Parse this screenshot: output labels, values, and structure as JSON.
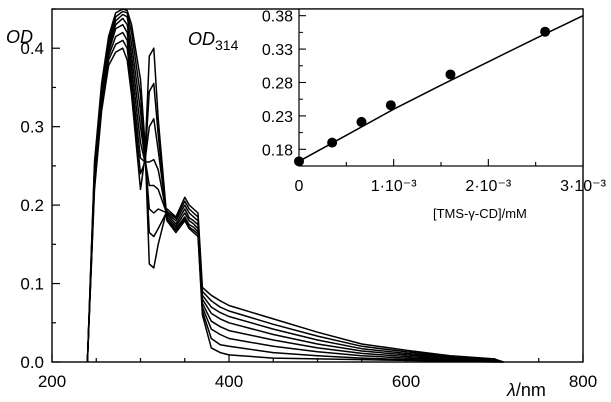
{
  "chart_data": [
    {
      "type": "line",
      "ylabel": "OD",
      "xlabel_var": "λ",
      "xlabel_unit": "/nm",
      "xlim": [
        200,
        800
      ],
      "ylim": [
        0,
        0.45
      ],
      "x_ticks": [
        "200",
        "400",
        "600",
        "800"
      ],
      "y_ticks": [
        "0.0",
        "0.1",
        "0.2",
        "0.3",
        "0.4"
      ],
      "grid": false,
      "series": [
        {
          "x": [
            240,
            248,
            256,
            264,
            272,
            280,
            285,
            290,
            300,
            305,
            310,
            315,
            320,
            330,
            340,
            350,
            355,
            360,
            365,
            370,
            380,
            390,
            400,
            450,
            500,
            550,
            600,
            650,
            700,
            710
          ],
          "y": [
            0,
            0.22,
            0.32,
            0.378,
            0.395,
            0.4,
            0.385,
            0.34,
            0.22,
            0.26,
            0.39,
            0.4,
            0.31,
            0.18,
            0.165,
            0.18,
            0.17,
            0.165,
            0.16,
            0.06,
            0.018,
            0.012,
            0.009,
            0.005,
            0.004,
            0.003,
            0.002,
            0.001,
            0,
            0
          ]
        },
        {
          "x": [
            240,
            248,
            256,
            264,
            272,
            280,
            285,
            290,
            300,
            305,
            310,
            315,
            320,
            330,
            340,
            350,
            355,
            360,
            365,
            370,
            380,
            390,
            400,
            450,
            500,
            550,
            600,
            650,
            700,
            710
          ],
          "y": [
            0,
            0.225,
            0.325,
            0.385,
            0.405,
            0.41,
            0.4,
            0.35,
            0.24,
            0.255,
            0.345,
            0.355,
            0.29,
            0.18,
            0.168,
            0.182,
            0.172,
            0.168,
            0.163,
            0.065,
            0.03,
            0.022,
            0.02,
            0.012,
            0.008,
            0.005,
            0.003,
            0.002,
            0.001,
            0
          ]
        },
        {
          "x": [
            240,
            248,
            256,
            264,
            272,
            280,
            285,
            290,
            300,
            305,
            310,
            315,
            320,
            330,
            340,
            350,
            355,
            360,
            365,
            370,
            380,
            390,
            400,
            450,
            500,
            550,
            600,
            650,
            700,
            710
          ],
          "y": [
            0,
            0.23,
            0.33,
            0.39,
            0.415,
            0.42,
            0.41,
            0.36,
            0.26,
            0.255,
            0.3,
            0.31,
            0.27,
            0.182,
            0.17,
            0.185,
            0.175,
            0.172,
            0.166,
            0.07,
            0.042,
            0.035,
            0.03,
            0.02,
            0.013,
            0.008,
            0.005,
            0.003,
            0.001,
            0
          ]
        },
        {
          "x": [
            240,
            248,
            256,
            264,
            272,
            280,
            285,
            290,
            300,
            305,
            310,
            315,
            320,
            330,
            340,
            350,
            355,
            360,
            365,
            370,
            380,
            390,
            400,
            450,
            500,
            550,
            600,
            650,
            700,
            710
          ],
          "y": [
            0,
            0.235,
            0.335,
            0.395,
            0.425,
            0.43,
            0.42,
            0.375,
            0.28,
            0.255,
            0.255,
            0.258,
            0.245,
            0.185,
            0.173,
            0.19,
            0.18,
            0.176,
            0.17,
            0.075,
            0.052,
            0.045,
            0.04,
            0.028,
            0.018,
            0.011,
            0.007,
            0.004,
            0.002,
            0
          ]
        },
        {
          "x": [
            240,
            248,
            256,
            264,
            272,
            280,
            285,
            290,
            300,
            305,
            310,
            315,
            320,
            330,
            340,
            350,
            355,
            360,
            365,
            370,
            380,
            390,
            400,
            450,
            500,
            550,
            600,
            650,
            700,
            710
          ],
          "y": [
            0,
            0.24,
            0.34,
            0.4,
            0.43,
            0.438,
            0.43,
            0.39,
            0.3,
            0.26,
            0.225,
            0.225,
            0.22,
            0.188,
            0.176,
            0.195,
            0.184,
            0.18,
            0.175,
            0.08,
            0.062,
            0.055,
            0.05,
            0.035,
            0.023,
            0.014,
            0.009,
            0.005,
            0.002,
            0
          ]
        },
        {
          "x": [
            240,
            248,
            256,
            264,
            272,
            280,
            285,
            290,
            300,
            305,
            310,
            315,
            320,
            330,
            340,
            350,
            355,
            360,
            365,
            370,
            380,
            390,
            400,
            450,
            500,
            550,
            600,
            650,
            700,
            710
          ],
          "y": [
            0,
            0.245,
            0.345,
            0.405,
            0.435,
            0.443,
            0.44,
            0.405,
            0.32,
            0.265,
            0.195,
            0.19,
            0.195,
            0.19,
            0.18,
            0.2,
            0.19,
            0.185,
            0.18,
            0.085,
            0.07,
            0.063,
            0.058,
            0.042,
            0.028,
            0.017,
            0.011,
            0.006,
            0.003,
            0
          ]
        },
        {
          "x": [
            240,
            248,
            256,
            264,
            272,
            280,
            285,
            290,
            300,
            305,
            310,
            315,
            320,
            330,
            340,
            350,
            355,
            360,
            365,
            370,
            380,
            390,
            400,
            450,
            500,
            550,
            600,
            650,
            700,
            710
          ],
          "y": [
            0,
            0.25,
            0.35,
            0.41,
            0.44,
            0.447,
            0.445,
            0.42,
            0.34,
            0.27,
            0.165,
            0.16,
            0.17,
            0.192,
            0.183,
            0.205,
            0.195,
            0.19,
            0.185,
            0.09,
            0.078,
            0.07,
            0.065,
            0.048,
            0.033,
            0.02,
            0.013,
            0.007,
            0.003,
            0
          ]
        },
        {
          "x": [
            240,
            248,
            256,
            264,
            272,
            280,
            285,
            290,
            300,
            305,
            310,
            315,
            320,
            330,
            340,
            350,
            355,
            360,
            365,
            370,
            380,
            390,
            400,
            450,
            500,
            550,
            600,
            650,
            700,
            710
          ],
          "y": [
            0,
            0.255,
            0.355,
            0.415,
            0.445,
            0.45,
            0.448,
            0.43,
            0.36,
            0.28,
            0.125,
            0.12,
            0.15,
            0.195,
            0.185,
            0.21,
            0.2,
            0.195,
            0.19,
            0.095,
            0.085,
            0.078,
            0.072,
            0.055,
            0.038,
            0.023,
            0.015,
            0.008,
            0.004,
            0
          ]
        }
      ]
    },
    {
      "type": "scatter",
      "ylabel_main": "OD",
      "ylabel_sub": "314",
      "xlabel": "[TMS-γ-CD]/mM",
      "xlim": [
        0,
        0.003
      ],
      "ylim": [
        0.155,
        0.39
      ],
      "x_ticks": [
        "0",
        "1·10⁻³",
        "2·10⁻³",
        "3·10⁻³"
      ],
      "y_ticks": [
        "0.18",
        "0.23",
        "0.28",
        "0.33",
        "0.38"
      ],
      "points": {
        "x": [
          0,
          0.00035,
          0.00066,
          0.00097,
          0.0016,
          0.0026
        ],
        "y": [
          0.162,
          0.19,
          0.221,
          0.246,
          0.292,
          0.356
        ]
      },
      "fit_line": {
        "x": [
          0,
          0.0005,
          0.001,
          0.0015,
          0.002,
          0.0025,
          0.003
        ],
        "y": [
          0.162,
          0.201,
          0.24,
          0.276,
          0.311,
          0.346,
          0.38
        ]
      }
    }
  ]
}
